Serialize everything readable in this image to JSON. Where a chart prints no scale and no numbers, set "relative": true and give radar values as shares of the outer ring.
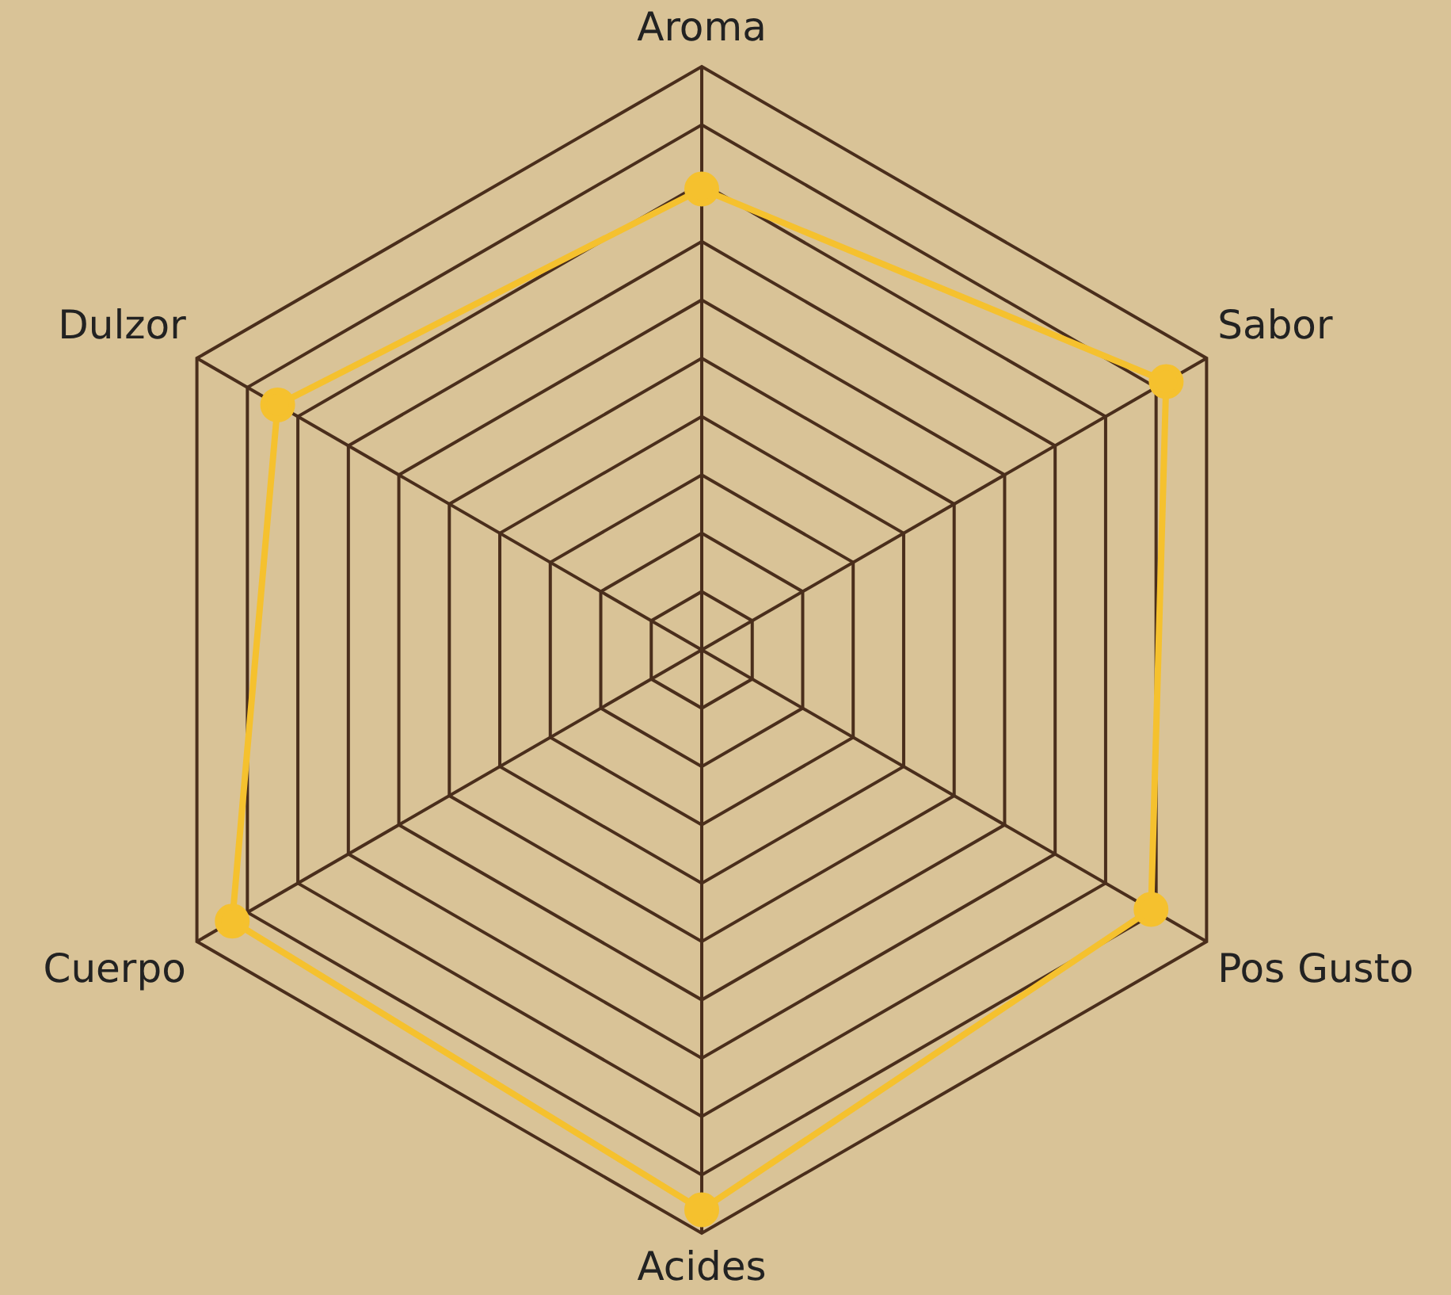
{
  "chart_data": {
    "type": "radar",
    "relative": true,
    "categories": [
      "Aroma",
      "Sabor",
      "Pos Gusto",
      "Acides",
      "Cuerpo",
      "Dulzor"
    ],
    "series": [
      {
        "color": "#f5c12e",
        "values": [
          0.79,
          0.92,
          0.89,
          0.96,
          0.93,
          0.84
        ]
      }
    ],
    "grid": true,
    "marker": "circle"
  }
}
